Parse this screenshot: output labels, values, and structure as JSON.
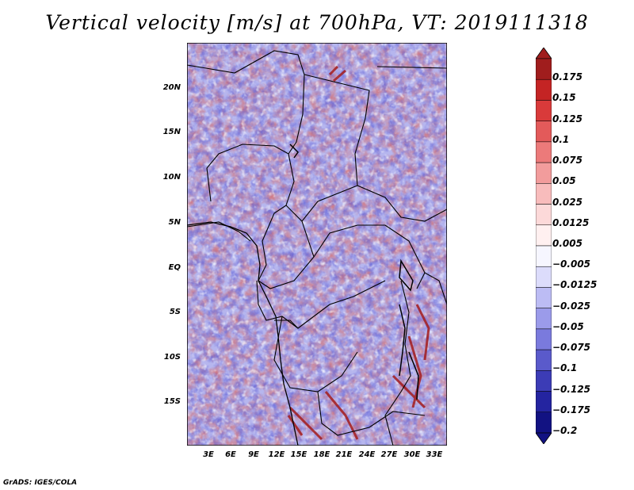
{
  "title": "Vertical velocity [m/s] at 700hPa, VT: 2019111318",
  "credit": "GrADS: IGES/COLA",
  "map": {
    "lat_labels": [
      "20N",
      "15N",
      "10N",
      "5N",
      "EQ",
      "5S",
      "10S",
      "15S"
    ],
    "lon_labels": [
      "3E",
      "6E",
      "9E",
      "12E",
      "15E",
      "18E",
      "21E",
      "24E",
      "27E",
      "30E",
      "33E"
    ]
  },
  "colorbar": {
    "labels": [
      "0.175",
      "0.15",
      "0.125",
      "0.1",
      "0.075",
      "0.05",
      "0.025",
      "0.0125",
      "0.005",
      "−0.005",
      "−0.0125",
      "−0.025",
      "−0.05",
      "−0.075",
      "−0.1",
      "−0.125",
      "−0.175",
      "−0.2"
    ],
    "colors": [
      "#a01d1d",
      "#c42424",
      "#d93a3a",
      "#e35a5a",
      "#ec7a7a",
      "#f29c9c",
      "#f8bcbc",
      "#fcd9d9",
      "#fff0f0",
      "#f6f6ff",
      "#dcdcfb",
      "#bcbcf4",
      "#9b9bea",
      "#7a7add",
      "#5a5acb",
      "#3c3cb6",
      "#2424a0",
      "#121282"
    ]
  }
}
